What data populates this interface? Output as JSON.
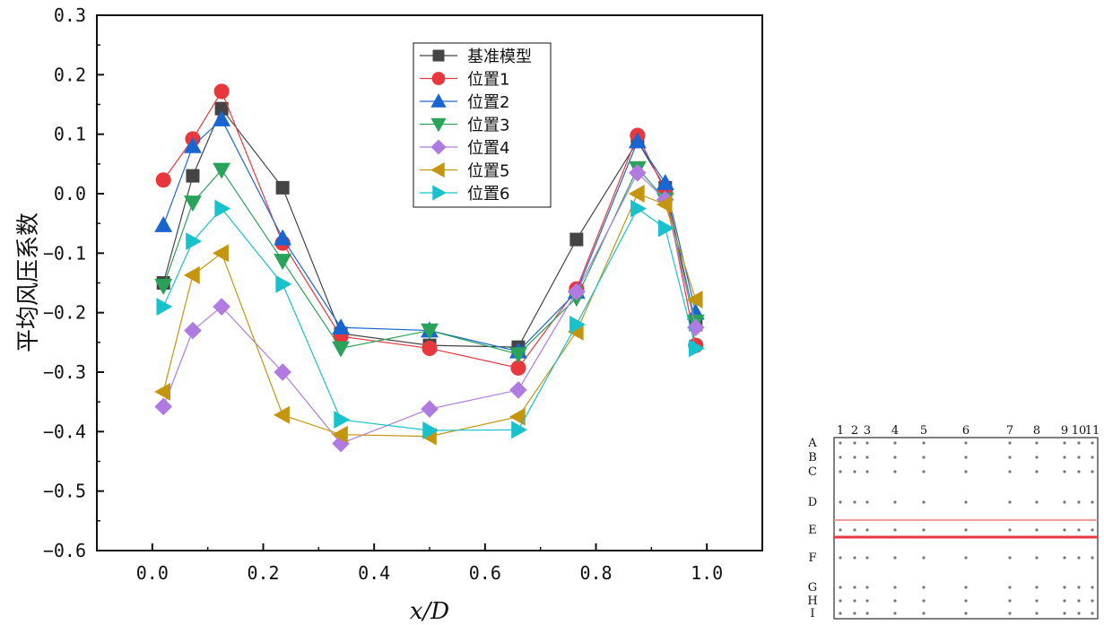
{
  "chart_data": {
    "type": "line",
    "xlabel": "x/D",
    "ylabel": "平均风压系数",
    "xlim": [
      -0.1,
      1.1
    ],
    "ylim": [
      -0.6,
      0.3
    ],
    "xticks": [
      "0.0",
      "0.2",
      "0.4",
      "0.6",
      "0.8",
      "1.0"
    ],
    "yticks": [
      "0.3",
      "0.2",
      "0.1",
      "0.0",
      "−0.1",
      "−0.2",
      "−0.3",
      "−0.4",
      "−0.5",
      "−0.6"
    ],
    "x": [
      0.02,
      0.073,
      0.125,
      0.235,
      0.34,
      0.5,
      0.66,
      0.765,
      0.875,
      0.925,
      0.98
    ],
    "series": [
      {
        "name": "基准模型",
        "color": "#444444",
        "marker": "square",
        "values": [
          -0.15,
          0.03,
          0.143,
          0.01,
          -0.235,
          -0.255,
          -0.258,
          -0.077,
          0.088,
          0.01,
          -0.22
        ]
      },
      {
        "name": "位置1",
        "color": "#e8383d",
        "marker": "circle",
        "values": [
          0.023,
          0.092,
          0.172,
          -0.083,
          -0.24,
          -0.26,
          -0.293,
          -0.16,
          0.098,
          0.005,
          -0.255
        ]
      },
      {
        "name": "位置2",
        "color": "#1a66d0",
        "marker": "triangle-up",
        "values": [
          -0.053,
          0.08,
          0.125,
          -0.075,
          -0.225,
          -0.23,
          -0.265,
          -0.165,
          0.088,
          0.018,
          -0.2
        ]
      },
      {
        "name": "位置3",
        "color": "#2aa35a",
        "marker": "triangle-down",
        "values": [
          -0.155,
          -0.015,
          0.04,
          -0.113,
          -0.26,
          -0.23,
          -0.27,
          -0.175,
          0.043,
          -0.01,
          -0.215
        ]
      },
      {
        "name": "位置4",
        "color": "#b07be0",
        "marker": "diamond",
        "values": [
          -0.358,
          -0.23,
          -0.19,
          -0.3,
          -0.42,
          -0.362,
          -0.33,
          -0.165,
          0.035,
          -0.01,
          -0.225
        ]
      },
      {
        "name": "位置5",
        "color": "#c4960f",
        "marker": "triangle-left",
        "values": [
          -0.333,
          -0.137,
          -0.1,
          -0.372,
          -0.405,
          -0.408,
          -0.375,
          -0.232,
          0.0,
          -0.018,
          -0.178
        ]
      },
      {
        "name": "位置6",
        "color": "#18c2cc",
        "marker": "triangle-right",
        "values": [
          -0.19,
          -0.08,
          -0.025,
          -0.152,
          -0.38,
          -0.398,
          -0.397,
          -0.22,
          -0.025,
          -0.058,
          -0.26
        ]
      }
    ],
    "legend_position": "top-center"
  },
  "grid_diagram": {
    "columns": [
      "1",
      "2",
      "3",
      "4",
      "5",
      "6",
      "7",
      "8",
      "9",
      "10",
      "11"
    ],
    "rows": [
      "A",
      "B",
      "C",
      "D",
      "E",
      "F",
      "G",
      "H",
      "I"
    ]
  }
}
